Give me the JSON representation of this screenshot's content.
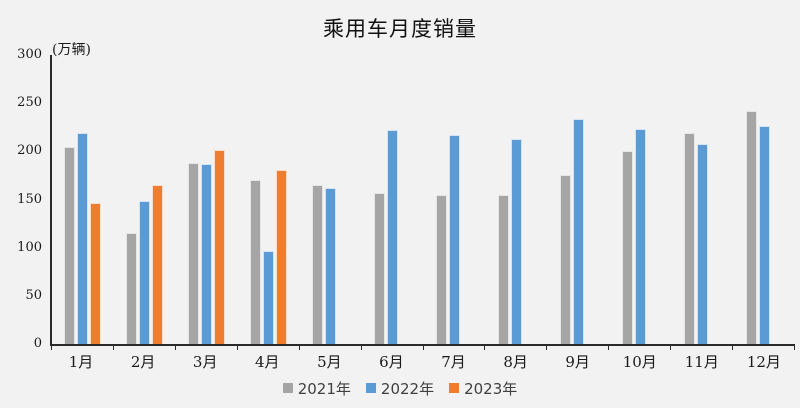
{
  "chart_data": {
    "type": "bar",
    "title": "乘用车月度销量",
    "unit_label": "(万辆)",
    "xlabel": "",
    "ylabel": "(万辆)",
    "categories": [
      "1月",
      "2月",
      "3月",
      "4月",
      "5月",
      "6月",
      "7月",
      "8月",
      "9月",
      "10月",
      "11月",
      "12月"
    ],
    "series": [
      {
        "name": "2021年",
        "color": "#a5a5a5",
        "values": [
          204.5,
          115.5,
          187.4,
          170.4,
          164.6,
          156.9,
          155.1,
          155.2,
          175.1,
          200.7,
          219.2,
          242.2
        ]
      },
      {
        "name": "2022年",
        "color": "#5b9bd5",
        "values": [
          218.6,
          148.7,
          186.4,
          96.5,
          162.3,
          222.2,
          217.4,
          212.5,
          233.2,
          223.7,
          207.5,
          226.3
        ]
      },
      {
        "name": "2023年",
        "color": "#ed7d31",
        "values": [
          146.9,
          165.3,
          201.7,
          181.1,
          null,
          null,
          null,
          null,
          null,
          null,
          null,
          null
        ]
      }
    ],
    "ylim": [
      0,
      300
    ],
    "y_tick_interval": 50,
    "y_tick_labels": [
      "300",
      "250",
      "200",
      "150",
      "100",
      "50",
      "0"
    ],
    "grid": false,
    "legend_position": "bottom"
  },
  "colors": {
    "background": "#f2f2f2",
    "axis": "#2b2b2b",
    "axis_text": "#1a1a1a",
    "legend_text": "#404040"
  }
}
